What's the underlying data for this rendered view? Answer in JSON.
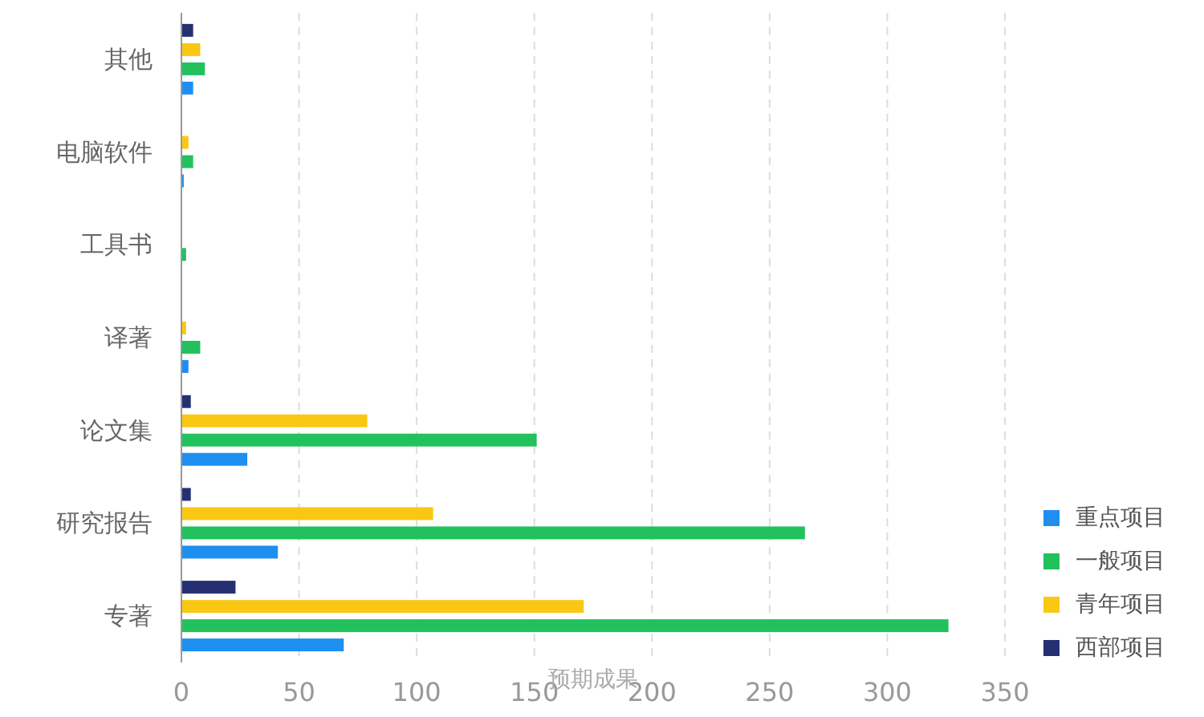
{
  "chart_data": {
    "type": "bar",
    "orientation": "horizontal",
    "xlabel": "预期成果",
    "categories": [
      "其他",
      "电脑软件",
      "工具书",
      "译著",
      "论文集",
      "研究报告",
      "专著"
    ],
    "series": [
      {
        "name": "重点项目",
        "color": "#1f8ef1",
        "values": [
          5,
          1,
          0,
          3,
          28,
          41,
          69
        ]
      },
      {
        "name": "一般项目",
        "color": "#22c15e",
        "values": [
          10,
          5,
          2,
          8,
          151,
          265,
          326
        ]
      },
      {
        "name": "青年项目",
        "color": "#fac714",
        "values": [
          8,
          3,
          0,
          2,
          79,
          107,
          171
        ]
      },
      {
        "name": "西部项目",
        "color": "#243071",
        "values": [
          5,
          0,
          0,
          0,
          4,
          4,
          23
        ]
      }
    ],
    "xlim": [
      0,
      350
    ],
    "xticks": [
      0,
      50,
      100,
      150,
      200,
      250,
      300,
      350
    ],
    "grid": "x",
    "legend": "bottom right"
  }
}
